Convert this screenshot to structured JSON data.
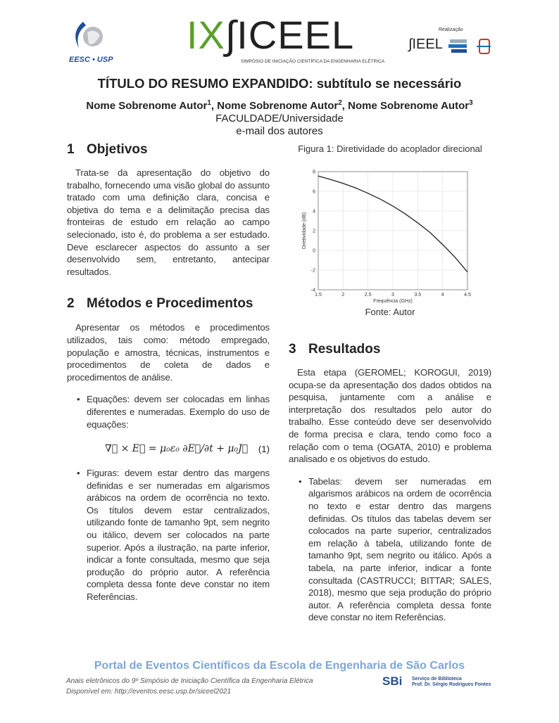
{
  "header": {
    "eesc_logo_text": "EESC • USP",
    "event_logo_ix": "IX",
    "event_logo_name": "∫ICEEL",
    "event_subtitle": "SIMPÓSIO DE INICIAÇÃO CIENTÍFICA DA ENGENHARIA ELÉTRICA",
    "realizacao": "Realização",
    "sieel_logo": "∫IEEL"
  },
  "title": "TÍTULO DO RESUMO EXPANDIDO: subtítulo se necessário",
  "authors": [
    {
      "name": "Nome Sobrenome Autor",
      "sup": "1"
    },
    {
      "name": "Nome Sobrenome Autor",
      "sup": "2"
    },
    {
      "name": "Nome Sobrenome Autor",
      "sup": "3"
    }
  ],
  "affiliation": "FACULDADE/Universidade",
  "email": "e-mail dos autores",
  "sections": {
    "s1": {
      "num": "1",
      "title": "Objetivos",
      "text": "Trata-se da apresentação do objetivo do trabalho, fornecendo uma visão global do assunto tratado com uma definição clara, concisa e objetiva do tema e a delimitação precisa das fronteiras de estudo em relação ao campo selecionado, isto é, do problema a ser estudado. Deve esclarecer aspectos do assunto a ser desenvolvido sem, entretanto, antecipar resultados."
    },
    "s2": {
      "num": "2",
      "title": "Métodos e Procedimentos",
      "text": "Apresentar os métodos e procedimentos utilizados, tais como: método empregado, população e amostra, técnicas, instrumentos e procedimentos de coleta de dados e procedimentos de análise.",
      "bullet1": "Equações: devem ser colocadas em linhas diferentes e numeradas. Exemplo do uso de equações:",
      "equation": "∇⃗ × E⃗ = μ₀ε₀ ∂E⃗/∂t + μ₀J⃗",
      "equation_number": "(1)",
      "bullet2": "Figuras: devem estar dentro das margens definidas e ser numeradas em algarismos arábicos na ordem de ocorrência no texto. Os títulos devem estar centralizados, utilizando fonte de tamanho 9pt, sem negrito ou itálico, devem ser colocados na parte superior. Após a ilustração, na parte inferior, indicar a fonte consultada, mesmo que seja produção do próprio autor. A referência completa dessa fonte deve constar no item Referências."
    },
    "s3": {
      "num": "3",
      "title": "Resultados",
      "text": "Esta etapa (GEROMEL; KOROGUI, 2019) ocupa-se da apresentação dos dados obtidos na pesquisa, juntamente com a análise e interpretação dos resultados pelo autor do trabalho. Esse conteúdo deve ser desenvolvido de forma precisa e clara, tendo como foco a relação com o tema (OGATA, 2010) e problema analisado e os objetivos do estudo.",
      "bullet1": "Tabelas: devem ser numeradas em algarismos arábicos na ordem de ocorrência no texto e estar dentro das margens definidas. Os títulos das tabelas devem ser colocados na parte superior, centralizados em relação à tabela, utilizando fonte de tamanho 9pt, sem negrito ou itálico. Após a tabela, na parte inferior, indicar a fonte consultada (CASTRUCCI; BITTAR; SALES, 2018), mesmo que seja produção do próprio autor. A referência completa dessa fonte deve constar no item Referências."
    }
  },
  "figure": {
    "caption": "Figura 1: Diretividade do acoplador direcional",
    "source": "Fonte: Autor"
  },
  "chart_data": {
    "type": "line",
    "xlabel": "Frequência (GHz)",
    "ylabel": "Diretividade (dB)",
    "xlim": [
      1.5,
      4.5
    ],
    "ylim": [
      -4,
      8
    ],
    "xticks": [
      "1.5",
      "2",
      "2.5",
      "3",
      "3.5",
      "4",
      "4.5"
    ],
    "yticks": [
      "-4",
      "-2",
      "0",
      "2",
      "4",
      "6",
      "8"
    ],
    "grid": true,
    "x": [
      1.5,
      1.75,
      2,
      2.25,
      2.5,
      2.75,
      3,
      3.25,
      3.5,
      3.75,
      4,
      4.25,
      4.5
    ],
    "y": [
      7.55,
      7.2,
      6.8,
      6.35,
      5.8,
      5.2,
      4.5,
      3.7,
      2.8,
      1.8,
      0.6,
      -0.7,
      -2.2
    ],
    "color": "#222222"
  },
  "footer": {
    "portal": "Portal de Eventos Científicos da Escola de Engenharia de São Carlos",
    "line1": "Anais eletrônicos do 9º Simpósio de Iniciação Científica da Engenharia Elétrica",
    "line2": "Disponível em: http://eventos.eesc.usp.br/siceel2021",
    "sbi": "SBi",
    "sbi_line1": "Serviço de Biblioteca",
    "sbi_line2": "Prof. Dr. Sérgio Rodrigues Fontes"
  }
}
